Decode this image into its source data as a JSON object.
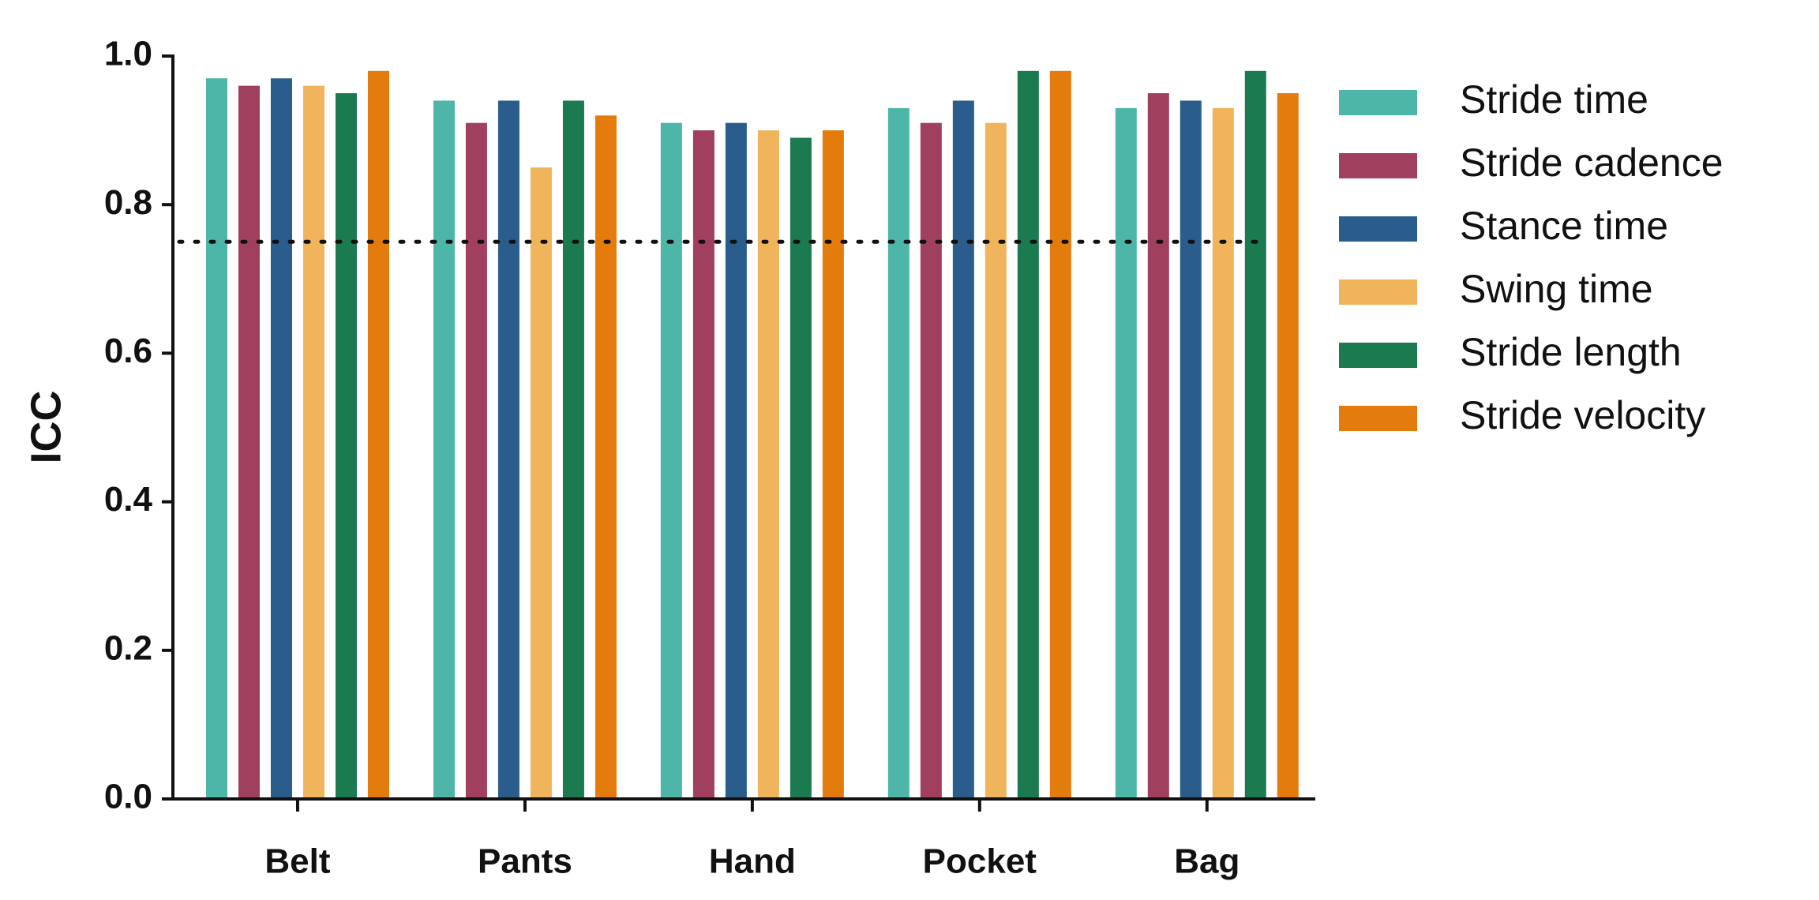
{
  "chart_data": {
    "type": "bar",
    "ylabel": "ICC",
    "categories": [
      "Belt",
      "Pants",
      "Hand",
      "Pocket",
      "Bag"
    ],
    "series": [
      {
        "name": "Stride time",
        "color": "#4db6a8",
        "values": [
          0.97,
          0.94,
          0.91,
          0.93,
          0.93
        ]
      },
      {
        "name": "Stride cadence",
        "color": "#a0405e",
        "values": [
          0.96,
          0.91,
          0.9,
          0.91,
          0.95
        ]
      },
      {
        "name": "Stance time",
        "color": "#2b5d8c",
        "values": [
          0.97,
          0.94,
          0.91,
          0.94,
          0.94
        ]
      },
      {
        "name": "Swing time",
        "color": "#f0b55c",
        "values": [
          0.96,
          0.85,
          0.9,
          0.91,
          0.93
        ]
      },
      {
        "name": "Stride length",
        "color": "#1b7a50",
        "values": [
          0.95,
          0.94,
          0.89,
          0.98,
          0.98
        ]
      },
      {
        "name": "Stride velocity",
        "color": "#e47b0d",
        "values": [
          0.98,
          0.92,
          0.9,
          0.98,
          0.95
        ]
      }
    ],
    "ylim": [
      0,
      1
    ],
    "yticks": [
      {
        "value": 0,
        "label": "0.0"
      },
      0.2,
      0.4,
      0.6,
      0.8,
      {
        "value": 1,
        "label": "1.0"
      }
    ],
    "reference_line": 0.75,
    "legend": "right"
  }
}
